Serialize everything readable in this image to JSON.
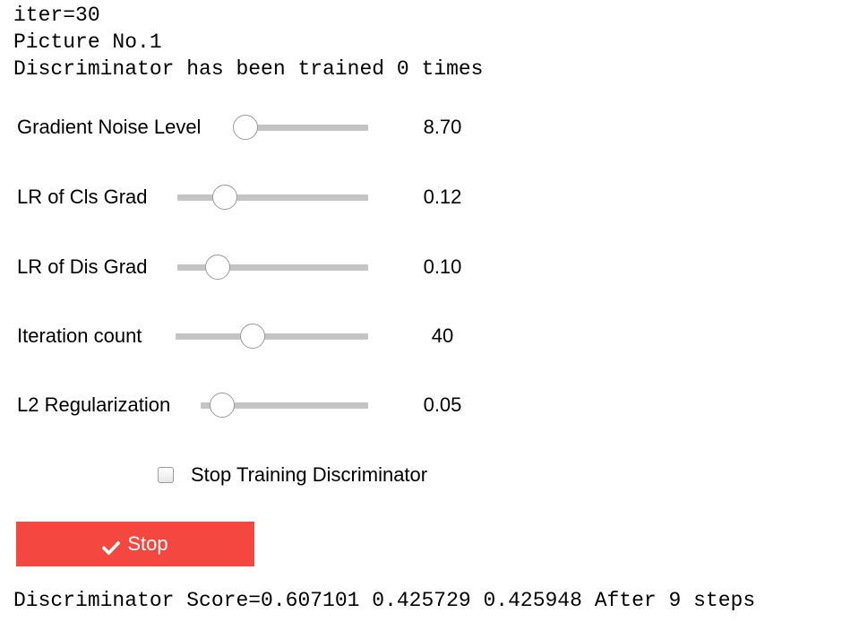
{
  "status": {
    "iter_line": "iter=30",
    "picture_line": "Picture No.1",
    "trained_line": "Discriminator has been trained 0 times"
  },
  "sliders": [
    {
      "label": "Gradient Noise Level",
      "value": "8.70",
      "level": 0.08
    },
    {
      "label": "LR of Cls Grad",
      "value": "0.12",
      "level": 0.25
    },
    {
      "label": "LR of Dis Grad",
      "value": "0.10",
      "level": 0.21
    },
    {
      "label": "Iteration count",
      "value": "40",
      "level": 0.4
    },
    {
      "label": "L2 Regularization",
      "value": "0.05",
      "level": 0.13
    }
  ],
  "checkbox": {
    "label": "Stop Training Discriminator",
    "checked": false
  },
  "stop_button": {
    "label": "Stop",
    "icon": "check-icon",
    "color": "#f44740"
  },
  "score_line": "Discriminator Score=0.607101 0.425729 0.425948 After 9 steps"
}
